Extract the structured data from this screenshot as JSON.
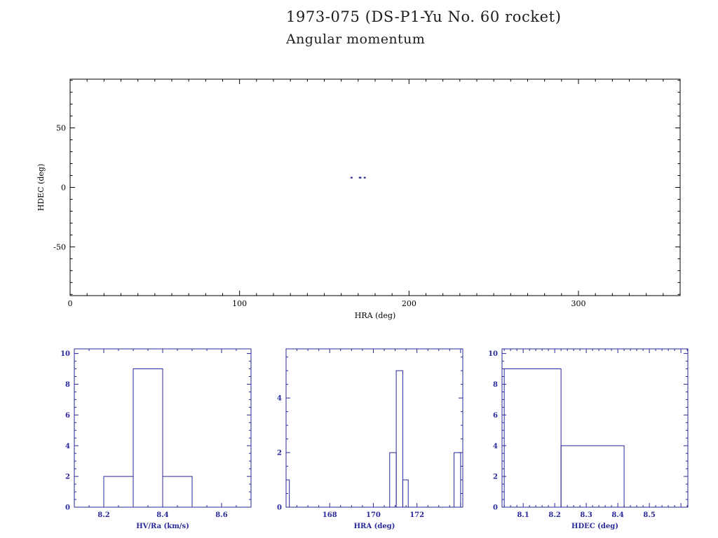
{
  "page": {
    "title_line1": "1973-075 (DS-P1-Yu No. 60 rocket)",
    "title_line2": "Angular momentum"
  },
  "colors": {
    "frame_black": "#000000",
    "accent_navy": "#28289a"
  },
  "chart_data": [
    {
      "type": "scatter",
      "title": "1973-075 (DS-P1-Yu No. 60 rocket) Angular momentum",
      "xlabel": "HRA (deg)",
      "ylabel": "HDEC (deg)",
      "xlim": [
        0,
        360
      ],
      "ylim": [
        -91,
        91
      ],
      "xtick_vals": [
        0,
        100,
        200,
        300
      ],
      "xtick_labels": [
        "0",
        "100",
        "200",
        "300"
      ],
      "ytick_vals": [
        -50,
        0,
        50
      ],
      "ytick_labels": [
        "-50",
        "0",
        "50"
      ],
      "xminor_div": 10,
      "yminor_div": 5,
      "grid": false,
      "frame_color": "#000000",
      "data_color": "#28289a",
      "points": [
        [
          166.0,
          8.15
        ],
        [
          166.15,
          8.2
        ],
        [
          170.9,
          8.2
        ],
        [
          171.05,
          8.25
        ],
        [
          171.2,
          8.3
        ],
        [
          171.35,
          8.1
        ],
        [
          173.8,
          8.2
        ],
        [
          173.95,
          8.15
        ]
      ]
    },
    {
      "type": "bar",
      "subtype": "histogram-outline",
      "title": "",
      "xlabel": "HV/Ra (km/s)",
      "ylabel": "",
      "xlim": [
        8.1,
        8.7
      ],
      "ylim": [
        0,
        10.3
      ],
      "xtick_vals": [
        8.2,
        8.4,
        8.6
      ],
      "xtick_labels": [
        "8.2",
        "8.4",
        "8.6"
      ],
      "ytick_vals": [
        0,
        2,
        4,
        6,
        8,
        10
      ],
      "ytick_labels": [
        "0",
        "2",
        "4",
        "6",
        "8",
        "10"
      ],
      "xminor_div": 4,
      "yminor_div": 4,
      "grid": false,
      "frame_color": "#28289a",
      "data_color": "#28289a",
      "bins": [
        {
          "x0": 8.2,
          "x1": 8.3,
          "count": 2
        },
        {
          "x0": 8.3,
          "x1": 8.4,
          "count": 9
        },
        {
          "x0": 8.4,
          "x1": 8.5,
          "count": 2
        }
      ]
    },
    {
      "type": "bar",
      "subtype": "histogram-outline",
      "title": "",
      "xlabel": "HRA (deg)",
      "ylabel": "",
      "xlim": [
        166.0,
        174.1
      ],
      "ylim": [
        0,
        5.8
      ],
      "xtick_vals": [
        168,
        170,
        172
      ],
      "xtick_labels": [
        "168",
        "170",
        "172"
      ],
      "ytick_vals": [
        0,
        2,
        4
      ],
      "ytick_labels": [
        "0",
        "2",
        "4"
      ],
      "xminor_div": 4,
      "yminor_div": 4,
      "grid": false,
      "frame_color": "#28289a",
      "data_color": "#28289a",
      "bins": [
        {
          "x0": 166.0,
          "x1": 166.15,
          "count": 1
        },
        {
          "x0": 170.75,
          "x1": 171.05,
          "count": 2
        },
        {
          "x0": 171.05,
          "x1": 171.35,
          "count": 5
        },
        {
          "x0": 171.35,
          "x1": 171.6,
          "count": 1
        },
        {
          "x0": 173.7,
          "x1": 174.0,
          "count": 2
        }
      ]
    },
    {
      "type": "bar",
      "subtype": "histogram-outline",
      "title": "",
      "xlabel": "HDEC (deg)",
      "ylabel": "",
      "xlim": [
        8.033,
        8.622
      ],
      "ylim": [
        0,
        10.3
      ],
      "xtick_vals": [
        8.1,
        8.2,
        8.3,
        8.4,
        8.5
      ],
      "xtick_labels": [
        "8.1",
        "8.2",
        "8.3",
        "8.4",
        "8.5"
      ],
      "ytick_vals": [
        0,
        2,
        4,
        6,
        8,
        10
      ],
      "ytick_labels": [
        "0",
        "2",
        "4",
        "6",
        "8",
        "10"
      ],
      "xminor_div": 5,
      "yminor_div": 4,
      "grid": false,
      "frame_color": "#28289a",
      "data_color": "#28289a",
      "bins": [
        {
          "x0": 8.04,
          "x1": 8.22,
          "count": 9
        },
        {
          "x0": 8.22,
          "x1": 8.42,
          "count": 4
        }
      ]
    }
  ]
}
